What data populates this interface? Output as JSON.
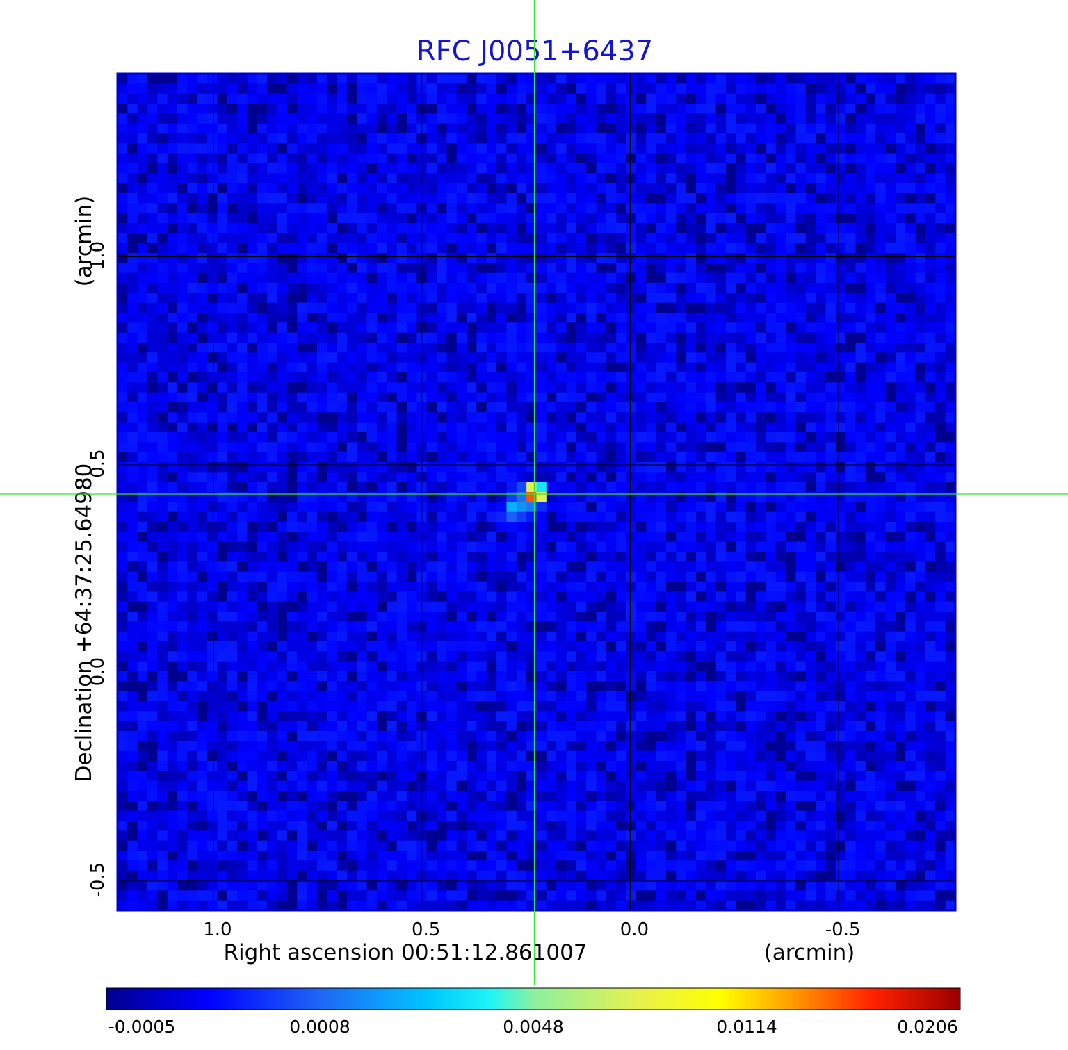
{
  "chart_data": {
    "type": "heatmap",
    "title": "RFC J0051+6437",
    "xlabel": "Right ascension  00:51:12.861007",
    "xunit": "(arcmin)",
    "ylabel": "Declination  +64:37:25.64980",
    "yunit": "(arcmin)",
    "xlim": [
      1.23,
      -0.78
    ],
    "ylim": [
      -0.57,
      1.44
    ],
    "x_ticks": [
      {
        "value": 1.0,
        "label": "1.0"
      },
      {
        "value": 0.5,
        "label": "0.5"
      },
      {
        "value": 0.0,
        "label": "0.0"
      },
      {
        "value": -0.5,
        "label": "-0.5"
      }
    ],
    "y_ticks": [
      {
        "value": 1.0,
        "label": "1.0"
      },
      {
        "value": 0.5,
        "label": "0.5"
      },
      {
        "value": 0.0,
        "label": "0.0"
      },
      {
        "value": -0.5,
        "label": "-0.5"
      }
    ],
    "grid": true,
    "source_peak": {
      "x": 0.23,
      "y": 0.43,
      "value": 0.0206
    },
    "crosshair": {
      "x": 0.23,
      "y": 0.43,
      "color": "#32e632"
    },
    "background_level": -0.0003,
    "colorbar": {
      "colormap": "jet",
      "orientation": "horizontal",
      "ticks": [
        "-0.0005",
        "0.0008",
        "0.0048",
        "0.0114",
        "0.0206"
      ]
    },
    "colors": {
      "title": "#1515d0",
      "frame": "#0000cc",
      "grid": "#000000"
    }
  }
}
